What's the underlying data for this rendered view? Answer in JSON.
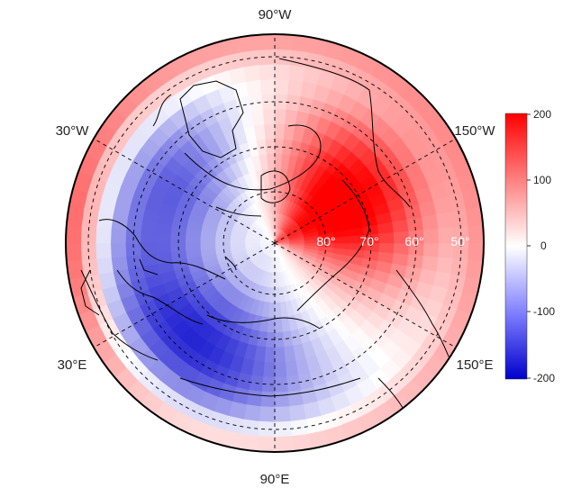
{
  "map": {
    "projection": "north-polar-stereographic",
    "field_type": "anomaly",
    "longitude_labels": [
      "90°W",
      "30°W",
      "150°W",
      "30°E",
      "150°E",
      "90°E"
    ],
    "latitude_labels": [
      "80°",
      "70°",
      "60°",
      "50°"
    ],
    "colorbar": {
      "ticks": [
        "200",
        "100",
        "0",
        "-100",
        "-200"
      ],
      "range": [
        -200,
        200
      ],
      "colors": {
        "high": "#ff0000",
        "mid": "#ffffff",
        "low": "#0000cc"
      }
    },
    "coastlines": true,
    "grid": "dashed"
  }
}
